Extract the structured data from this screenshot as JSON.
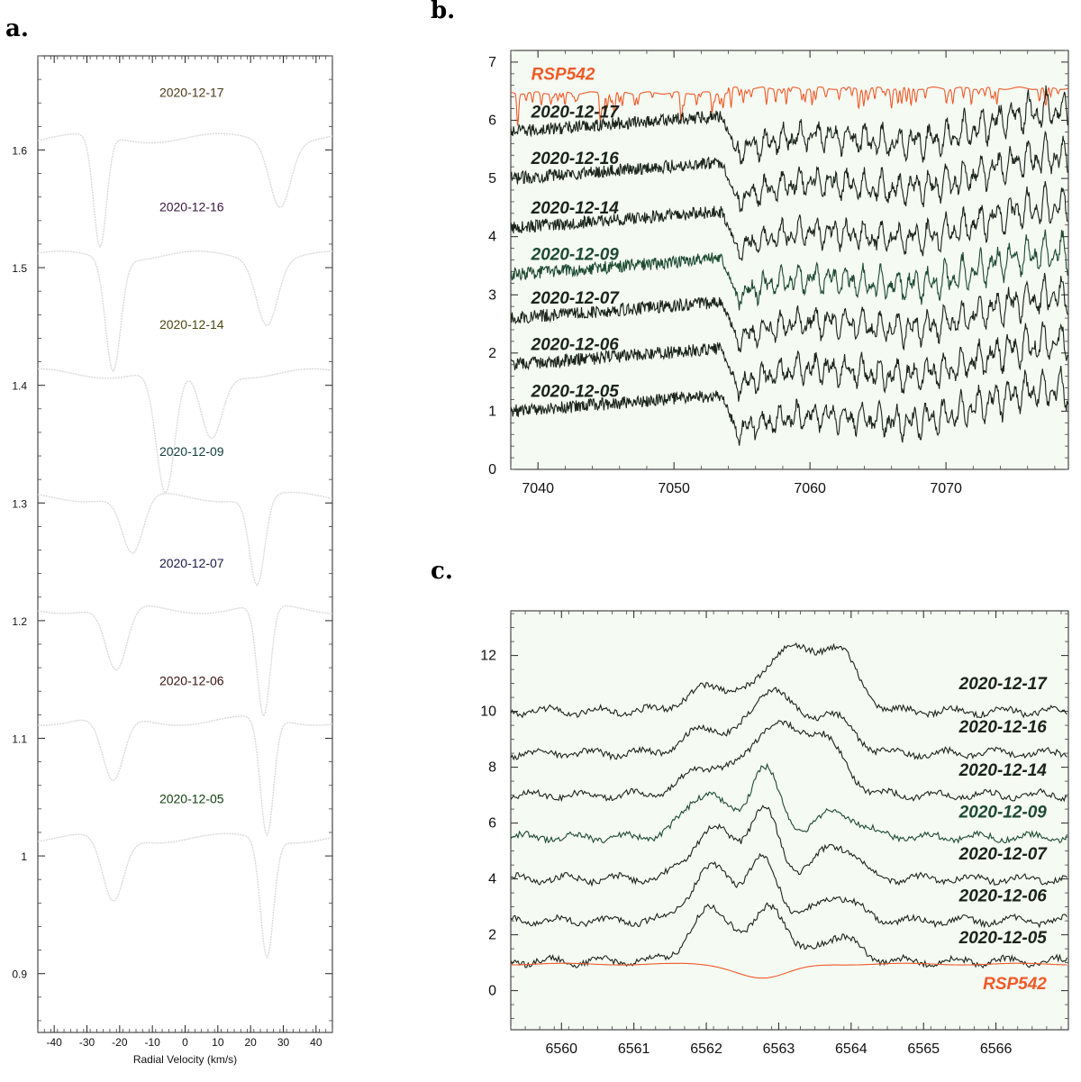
{
  "panel_labels": {
    "a": "a.",
    "b": "b.",
    "c": "c."
  },
  "chart_data": [
    {
      "id": "a",
      "type": "line",
      "title": "",
      "xlabel": "Radial Velocity (km/s)",
      "ylabel": "",
      "xlim": [
        -45,
        45
      ],
      "ylim": [
        0.85,
        1.68
      ],
      "xticks": [
        "-40",
        "-30",
        "-20",
        "-10",
        "0",
        "10",
        "20",
        "30",
        "40"
      ],
      "yticks": [
        "0.9",
        "1",
        "1.1",
        "1.2",
        "1.3",
        "1.4",
        "1.5",
        "1.6"
      ],
      "line_color": "#d9d9d9",
      "series": [
        {
          "name": "2020-12-17",
          "label_color": "#4a3a1a",
          "offset": 1.61,
          "label_y": 1.645,
          "dips": [
            [
              -26,
              0.095,
              2.0
            ],
            [
              29,
              0.055,
              3.2
            ]
          ]
        },
        {
          "name": "2020-12-16",
          "label_color": "#3a1440",
          "offset": 1.51,
          "label_y": 1.548,
          "dips": [
            [
              -22,
              0.095,
              2.3
            ],
            [
              25,
              0.055,
              3.2
            ]
          ]
        },
        {
          "name": "2020-12-14",
          "label_color": "#4a4a10",
          "offset": 1.41,
          "label_y": 1.448,
          "dips": [
            [
              -6,
              0.105,
              2.8
            ],
            [
              8,
              0.055,
              3.2
            ]
          ]
        },
        {
          "name": "2020-12-09",
          "label_color": "#123c3c",
          "offset": 1.305,
          "label_y": 1.34,
          "dips": [
            [
              -16,
              0.05,
              3.2
            ],
            [
              22,
              0.075,
              2.3
            ]
          ]
        },
        {
          "name": "2020-12-07",
          "label_color": "#1a1a4a",
          "offset": 1.21,
          "label_y": 1.245,
          "dips": [
            [
              -21,
              0.055,
              3.2
            ],
            [
              24,
              0.095,
              2.0
            ]
          ]
        },
        {
          "name": "2020-12-06",
          "label_color": "#3a1010",
          "offset": 1.115,
          "label_y": 1.145,
          "dips": [
            [
              -22,
              0.055,
              3.2
            ],
            [
              25,
              0.1,
              2.0
            ]
          ]
        },
        {
          "name": "2020-12-05",
          "label_color": "#104010",
          "offset": 1.015,
          "label_y": 1.045,
          "dips": [
            [
              -22,
              0.055,
              3.2
            ],
            [
              25,
              0.1,
              2.0
            ]
          ]
        }
      ]
    },
    {
      "id": "b",
      "type": "line",
      "title": "",
      "xlabel": "",
      "ylabel": "",
      "xlim": [
        7038,
        7079
      ],
      "ylim": [
        0,
        7.2
      ],
      "xticks": [
        "7040",
        "7050",
        "7060",
        "7070"
      ],
      "yticks": [
        "0",
        "1",
        "2",
        "3",
        "4",
        "5",
        "6",
        "7"
      ],
      "series": [
        {
          "name": "RSP542",
          "color": "#f05a28",
          "offset": 6.55,
          "label_y": 6.7
        },
        {
          "name": "2020-12-17",
          "color": "#1a241a",
          "offset": 5.8,
          "label_y": 6.05
        },
        {
          "name": "2020-12-16",
          "color": "#1a241a",
          "offset": 5.0,
          "label_y": 5.25
        },
        {
          "name": "2020-12-14",
          "color": "#1a241a",
          "offset": 4.15,
          "label_y": 4.4
        },
        {
          "name": "2020-12-09",
          "color": "#1d4a30",
          "offset": 3.35,
          "label_y": 3.6
        },
        {
          "name": "2020-12-07",
          "color": "#1a241a",
          "offset": 2.6,
          "label_y": 2.85
        },
        {
          "name": "2020-12-06",
          "color": "#1a241a",
          "offset": 1.8,
          "label_y": 2.05
        },
        {
          "name": "2020-12-05",
          "color": "#1a241a",
          "offset": 1.0,
          "label_y": 1.25
        }
      ]
    },
    {
      "id": "c",
      "type": "line",
      "title": "",
      "xlabel": "",
      "ylabel": "",
      "xlim": [
        6559.3,
        6567
      ],
      "ylim": [
        -1.4,
        13.6
      ],
      "xticks": [
        "6560",
        "6561",
        "6562",
        "6563",
        "6564",
        "6565",
        "6566"
      ],
      "yticks": [
        "0",
        "2",
        "4",
        "6",
        "8",
        "10",
        "12"
      ],
      "series": [
        {
          "name": "2020-12-17",
          "color": "#1a241a",
          "offset": 10.0,
          "label_y": 10.8,
          "peaks": [
            [
              6562.1,
              0.9,
              0.35
            ],
            [
              6563.1,
              2.2,
              0.3
            ],
            [
              6563.8,
              2.2,
              0.28
            ]
          ]
        },
        {
          "name": "2020-12-16",
          "color": "#1a241a",
          "offset": 8.5,
          "label_y": 9.25,
          "peaks": [
            [
              6562.0,
              0.9,
              0.3
            ],
            [
              6562.9,
              2.3,
              0.28
            ],
            [
              6563.7,
              1.4,
              0.3
            ]
          ]
        },
        {
          "name": "2020-12-14",
          "color": "#1a241a",
          "offset": 7.0,
          "label_y": 7.7,
          "peaks": [
            [
              6562.0,
              1.0,
              0.3
            ],
            [
              6562.9,
              2.4,
              0.32
            ],
            [
              6563.6,
              2.0,
              0.3
            ]
          ]
        },
        {
          "name": "2020-12-09",
          "color": "#1d4a30",
          "offset": 5.5,
          "label_y": 6.2,
          "peaks": [
            [
              6562.0,
              1.6,
              0.28
            ],
            [
              6562.8,
              2.5,
              0.2
            ],
            [
              6563.8,
              0.9,
              0.3
            ]
          ]
        },
        {
          "name": "2020-12-07",
          "color": "#1a241a",
          "offset": 4.0,
          "label_y": 4.7,
          "peaks": [
            [
              6562.1,
              1.8,
              0.3
            ],
            [
              6562.8,
              2.4,
              0.2
            ],
            [
              6563.8,
              1.2,
              0.28
            ]
          ]
        },
        {
          "name": "2020-12-06",
          "color": "#1a241a",
          "offset": 2.5,
          "label_y": 3.2,
          "peaks": [
            [
              6562.1,
              1.9,
              0.3
            ],
            [
              6562.8,
              2.1,
              0.2
            ],
            [
              6563.8,
              0.9,
              0.28
            ]
          ]
        },
        {
          "name": "2020-12-05",
          "color": "#1a241a",
          "offset": 1.05,
          "label_y": 1.7,
          "peaks": [
            [
              6562.1,
              1.9,
              0.3
            ],
            [
              6562.9,
              2.0,
              0.2
            ],
            [
              6563.8,
              0.9,
              0.28
            ]
          ]
        },
        {
          "name": "RSP542",
          "color": "#f05a28",
          "offset": 0.95,
          "label_y": 0.05,
          "peaks": [
            [
              6562.8,
              -0.5,
              0.35
            ]
          ]
        }
      ]
    }
  ]
}
